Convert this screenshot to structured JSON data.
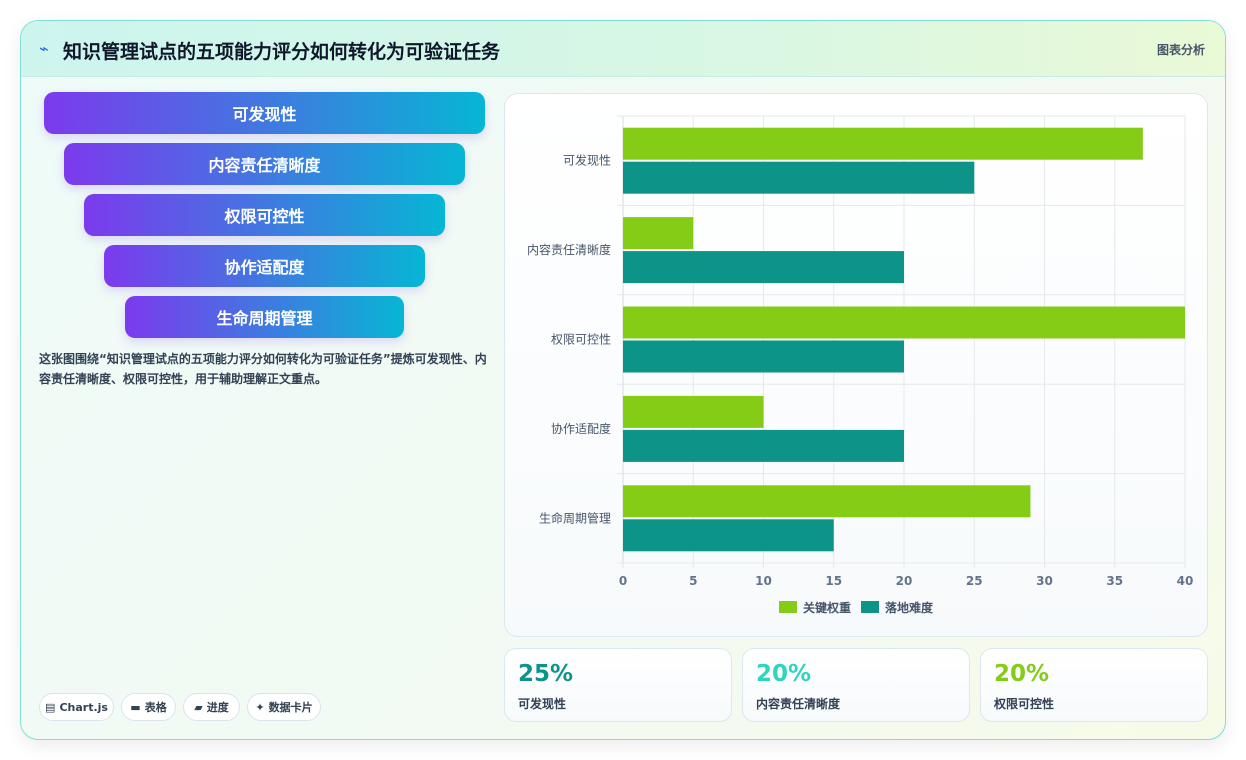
{
  "header": {
    "icon": "trend-icon",
    "title": "知识管理试点的五项能力评分如何转化为可验证任务",
    "tag": "图表分析"
  },
  "funnel": [
    {
      "label": "可发现性"
    },
    {
      "label": "内容责任清晰度"
    },
    {
      "label": "权限可控性"
    },
    {
      "label": "协作适配度"
    },
    {
      "label": "生命周期管理"
    }
  ],
  "description": "这张图围绕“知识管理试点的五项能力评分如何转化为可验证任务”提炼可发现性、内容责任清晰度、权限可控性，用于辅助理解正文重点。",
  "chips": [
    {
      "icon": "chart-icon",
      "label": "Chart.js"
    },
    {
      "icon": "table-icon",
      "label": "表格"
    },
    {
      "icon": "progress-icon",
      "label": "进度"
    },
    {
      "icon": "sparkle-icon",
      "label": "数据卡片"
    }
  ],
  "chart_data": {
    "type": "bar",
    "orientation": "horizontal",
    "categories": [
      "可发现性",
      "内容责任清晰度",
      "权限可控性",
      "协作适配度",
      "生命周期管理"
    ],
    "series": [
      {
        "name": "关键权重",
        "values": [
          37,
          5,
          40,
          10,
          29
        ],
        "color": "#84cc16"
      },
      {
        "name": "落地难度",
        "values": [
          25,
          20,
          20,
          20,
          15
        ],
        "color": "#0d9488"
      }
    ],
    "xlim": [
      0,
      40
    ],
    "xticks": [
      0,
      5,
      10,
      15,
      20,
      25,
      30,
      35,
      40
    ],
    "grid": true,
    "legend": "bottom"
  },
  "stats": [
    {
      "value": "25%",
      "label": "可发现性",
      "color": "#0d9488"
    },
    {
      "value": "20%",
      "label": "内容责任清晰度",
      "color": "#2dd4bf"
    },
    {
      "value": "20%",
      "label": "权限可控性",
      "color": "#84cc16"
    }
  ]
}
